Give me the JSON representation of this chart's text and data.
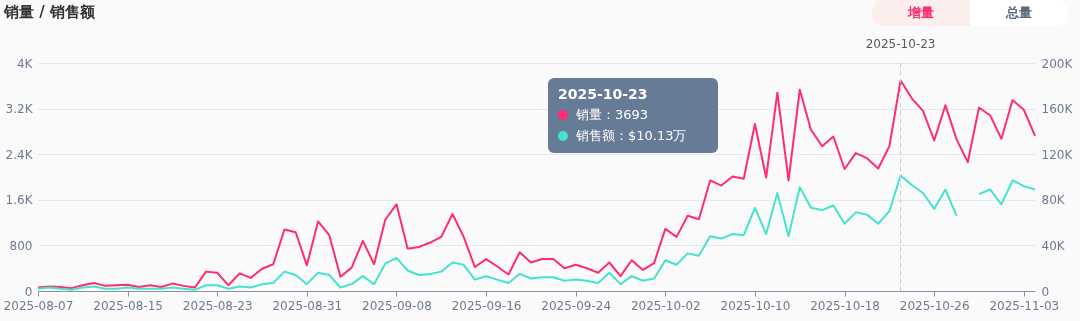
{
  "chart_data": {
    "type": "line",
    "title": "销量 / 销售额",
    "x": [
      "2025-08-07",
      "2025-08-08",
      "2025-08-09",
      "2025-08-10",
      "2025-08-11",
      "2025-08-12",
      "2025-08-13",
      "2025-08-14",
      "2025-08-15",
      "2025-08-16",
      "2025-08-17",
      "2025-08-18",
      "2025-08-19",
      "2025-08-20",
      "2025-08-21",
      "2025-08-22",
      "2025-08-23",
      "2025-08-24",
      "2025-08-25",
      "2025-08-26",
      "2025-08-27",
      "2025-08-28",
      "2025-08-29",
      "2025-08-30",
      "2025-08-31",
      "2025-09-01",
      "2025-09-02",
      "2025-09-03",
      "2025-09-04",
      "2025-09-05",
      "2025-09-06",
      "2025-09-07",
      "2025-09-08",
      "2025-09-09",
      "2025-09-10",
      "2025-09-11",
      "2025-09-12",
      "2025-09-13",
      "2025-09-14",
      "2025-09-15",
      "2025-09-16",
      "2025-09-17",
      "2025-09-18",
      "2025-09-19",
      "2025-09-20",
      "2025-09-21",
      "2025-09-22",
      "2025-09-23",
      "2025-09-24",
      "2025-09-25",
      "2025-09-26",
      "2025-09-27",
      "2025-09-28",
      "2025-09-29",
      "2025-09-30",
      "2025-10-01",
      "2025-10-02",
      "2025-10-03",
      "2025-10-04",
      "2025-10-05",
      "2025-10-06",
      "2025-10-07",
      "2025-10-08",
      "2025-10-09",
      "2025-10-10",
      "2025-10-11",
      "2025-10-12",
      "2025-10-13",
      "2025-10-14",
      "2025-10-15",
      "2025-10-16",
      "2025-10-17",
      "2025-10-18",
      "2025-10-19",
      "2025-10-20",
      "2025-10-21",
      "2025-10-22",
      "2025-10-23",
      "2025-10-24",
      "2025-10-25",
      "2025-10-26",
      "2025-10-27",
      "2025-10-28",
      "2025-10-29",
      "2025-10-30",
      "2025-10-31",
      "2025-11-01",
      "2025-11-02",
      "2025-11-03",
      "2025-11-04"
    ],
    "series": [
      {
        "color": "#ff2d6f",
        "values": [
          60,
          80,
          70,
          50,
          100,
          140,
          90,
          100,
          110,
          70,
          100,
          70,
          130,
          90,
          60,
          340,
          320,
          100,
          310,
          230,
          390,
          470,
          1080,
          1030,
          450,
          1220,
          980,
          250,
          410,
          880,
          470,
          1250,
          1520,
          740,
          770,
          850,
          950,
          1350,
          950,
          420,
          560,
          430,
          290,
          680,
          500,
          560,
          560,
          400,
          460,
          400,
          320,
          500,
          260,
          540,
          370,
          490,
          1090,
          950,
          1320,
          1260,
          1940,
          1850,
          2010,
          1970,
          2930,
          1990,
          3480,
          1940,
          3530,
          2830,
          2540,
          2710,
          2140,
          2420,
          2330,
          2150,
          2540,
          3693,
          3380,
          3160,
          2640,
          3260,
          2660,
          2260,
          3220,
          3080,
          2670,
          3350,
          3180,
          2720
        ]
      },
      {
        "color": "#45e3cf",
        "axis": "y2",
        "values": [
          2000,
          3000,
          2000,
          1000,
          3000,
          4000,
          2000,
          2000,
          3000,
          2000,
          2000,
          2000,
          3000,
          2000,
          1000,
          5000,
          5000,
          2000,
          4000,
          3000,
          6000,
          7000,
          17000,
          14000,
          6000,
          16000,
          14000,
          3000,
          6000,
          13000,
          6000,
          24000,
          29000,
          18000,
          14000,
          15000,
          17000,
          25000,
          23000,
          10000,
          13000,
          10000,
          7000,
          15000,
          11000,
          12000,
          12000,
          9000,
          10000,
          9000,
          7000,
          16000,
          6000,
          13000,
          9000,
          11000,
          27000,
          23000,
          33000,
          31000,
          48000,
          46000,
          50000,
          49000,
          73000,
          50000,
          86000,
          48000,
          91000,
          73000,
          71000,
          75000,
          59000,
          69000,
          67000,
          59000,
          70000,
          101300,
          93000,
          86000,
          72000,
          89000,
          66000,
          null,
          85000,
          89000,
          76000,
          97000,
          92000,
          89000
        ]
      }
    ],
    "xlim": [
      "2025-08-07",
      "2025-11-04"
    ],
    "xticks": [
      "2025-08-07",
      "2025-08-15",
      "2025-08-23",
      "2025-08-31",
      "2025-09-08",
      "2025-09-16",
      "2025-09-24",
      "2025-10-02",
      "2025-10-10",
      "2025-10-18",
      "2025-10-26",
      "2025-11-03"
    ],
    "ylim": [
      0,
      4000
    ],
    "yticks": [
      {
        "value": 0,
        "label": "0"
      },
      {
        "value": 800,
        "label": "800"
      },
      {
        "value": 1600,
        "label": "1.6K"
      },
      {
        "value": 2400,
        "label": "2.4K"
      },
      {
        "value": 3200,
        "label": "3.2K"
      },
      {
        "value": 4000,
        "label": "4K"
      }
    ],
    "y2lim": [
      0,
      200000
    ],
    "y2ticks": [
      {
        "value": 0,
        "label": "0"
      },
      {
        "value": 40000,
        "label": "40K"
      },
      {
        "value": 80000,
        "label": "80K"
      },
      {
        "value": 120000,
        "label": "120K"
      },
      {
        "value": 160000,
        "label": "160K"
      },
      {
        "value": 200000,
        "label": "200K"
      }
    ],
    "grid": "y",
    "ref_lines": [
      {
        "axis": "x",
        "value": "2025-10-23",
        "label": "2025-10-23",
        "color": "#c5c9d3",
        "line_style": "dashed"
      }
    ],
    "annotations": [
      "2025-10-23",
      "销量：3693",
      "销售额：$10.13万",
      "增量",
      "总量"
    ]
  }
}
